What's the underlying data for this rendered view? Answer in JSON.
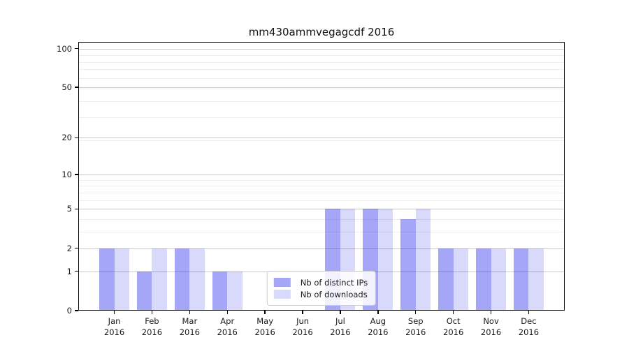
{
  "title": "mm430ammvegagcdf 2016",
  "chart_data": {
    "type": "bar",
    "title": "mm430ammvegagcdf 2016",
    "categories": [
      "Jan 2016",
      "Feb 2016",
      "Mar 2016",
      "Apr 2016",
      "May 2016",
      "Jun 2016",
      "Jul 2016",
      "Aug 2016",
      "Sep 2016",
      "Oct 2016",
      "Nov 2016",
      "Dec 2016"
    ],
    "series": [
      {
        "name": "Nb of distinct IPs",
        "color": "#a6a6f9",
        "values": [
          2,
          1,
          2,
          1,
          0,
          0,
          5,
          5,
          4,
          2,
          2,
          2
        ]
      },
      {
        "name": "Nb of downloads",
        "color": "#d9d9fb",
        "values": [
          2,
          2,
          2,
          1,
          0,
          0,
          5,
          5,
          5,
          2,
          2,
          2
        ]
      }
    ],
    "xlabel": "",
    "ylabel": "",
    "yscale": "log1p",
    "yticks": [
      0,
      1,
      2,
      5,
      10,
      20,
      50,
      100
    ],
    "ylim": [
      0,
      112
    ],
    "grid": "horizontal",
    "legend_position": "lower center"
  }
}
